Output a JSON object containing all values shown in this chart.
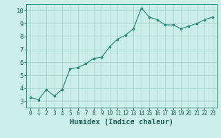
{
  "x": [
    0,
    1,
    2,
    3,
    4,
    5,
    6,
    7,
    8,
    9,
    10,
    11,
    12,
    13,
    14,
    15,
    16,
    17,
    18,
    19,
    20,
    21,
    22,
    23
  ],
  "y": [
    3.3,
    3.1,
    3.9,
    3.4,
    3.9,
    5.5,
    5.6,
    5.9,
    6.3,
    6.4,
    7.2,
    7.8,
    8.1,
    8.6,
    10.2,
    9.5,
    9.3,
    8.9,
    8.9,
    8.6,
    8.8,
    9.0,
    9.3,
    9.5
  ],
  "line_color": "#2e8b7a",
  "marker": ".",
  "markersize": 3.5,
  "linewidth": 0.9,
  "xlabel": "Humidex (Indice chaleur)",
  "xlabel_fontsize": 7.5,
  "xlim": [
    -0.5,
    23.5
  ],
  "ylim": [
    2.5,
    10.5
  ],
  "yticks": [
    3,
    4,
    5,
    6,
    7,
    8,
    9,
    10
  ],
  "xticks": [
    0,
    1,
    2,
    3,
    4,
    5,
    6,
    7,
    8,
    9,
    10,
    11,
    12,
    13,
    14,
    15,
    16,
    17,
    18,
    19,
    20,
    21,
    22,
    23
  ],
  "xtick_fontsize": 5.5,
  "ytick_fontsize": 6.5,
  "bg_color": "#cceee8",
  "grid_color": "#aad4ce",
  "grid_linewidth": 0.6,
  "spine_color": "#2e8b7a",
  "text_color": "#1a5c52"
}
